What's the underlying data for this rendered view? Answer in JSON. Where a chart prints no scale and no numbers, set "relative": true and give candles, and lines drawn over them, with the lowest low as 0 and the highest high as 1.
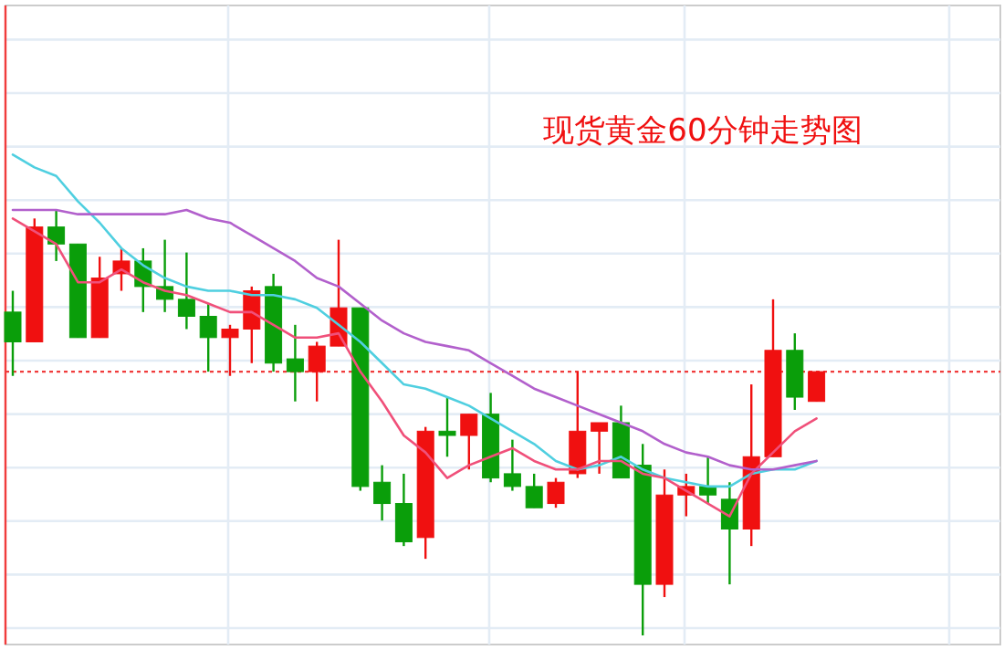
{
  "chart_data": {
    "type": "candlestick",
    "title": "现货黄金60分钟走势图",
    "relative": true,
    "grid": true,
    "categories": [
      null,
      null,
      null,
      null,
      null,
      null,
      null,
      null,
      null,
      null,
      null,
      null,
      null,
      null,
      null,
      null,
      null,
      null,
      null,
      null,
      null,
      null,
      null,
      null,
      null,
      null,
      null,
      null,
      null,
      null,
      null,
      null,
      null,
      null,
      null,
      null,
      null,
      null
    ],
    "ohlc": [
      [
        0.76,
        0.81,
        0.61,
        0.69
      ],
      [
        0.69,
        0.98,
        0.69,
        0.96
      ],
      [
        0.96,
        1,
        0.88,
        0.92
      ],
      [
        0.92,
        0.92,
        0.7,
        0.7
      ],
      [
        0.7,
        0.89,
        0.7,
        0.84
      ],
      [
        0.85,
        0.91,
        0.81,
        0.88
      ],
      [
        0.88,
        0.91,
        0.76,
        0.82
      ],
      [
        0.82,
        0.93,
        0.76,
        0.79
      ],
      [
        0.79,
        0.9,
        0.72,
        0.75
      ],
      [
        0.75,
        0.78,
        0.62,
        0.7
      ],
      [
        0.7,
        0.73,
        0.61,
        0.72
      ],
      [
        0.72,
        0.82,
        0.64,
        0.81
      ],
      [
        0.82,
        0.85,
        0.62,
        0.64
      ],
      [
        0.65,
        0.73,
        0.55,
        0.62
      ],
      [
        0.62,
        0.69,
        0.55,
        0.68
      ],
      [
        0.68,
        0.93,
        0.68,
        0.77
      ],
      [
        0.77,
        0.77,
        0.34,
        0.35
      ],
      [
        0.36,
        0.4,
        0.27,
        0.31
      ],
      [
        0.31,
        0.38,
        0.21,
        0.22
      ],
      [
        0.23,
        0.49,
        0.18,
        0.48
      ],
      [
        0.48,
        0.56,
        0.42,
        0.47
      ],
      [
        0.47,
        0.52,
        0.39,
        0.52
      ],
      [
        0.52,
        0.57,
        0.36,
        0.37
      ],
      [
        0.38,
        0.46,
        0.34,
        0.35
      ],
      [
        0.35,
        0.38,
        0.3,
        0.3
      ],
      [
        0.31,
        0.37,
        0.3,
        0.36
      ],
      [
        0.38,
        0.62,
        0.37,
        0.48
      ],
      [
        0.48,
        0.5,
        0.38,
        0.5
      ],
      [
        0.5,
        0.54,
        0.37,
        0.37
      ],
      [
        0.4,
        0.45,
        0,
        0.12
      ],
      [
        0.12,
        0.39,
        0.09,
        0.33
      ],
      [
        0.33,
        0.38,
        0.28,
        0.35
      ],
      [
        0.35,
        0.42,
        0.31,
        0.33
      ],
      [
        0.32,
        0.36,
        0.12,
        0.25
      ],
      [
        0.25,
        0.59,
        0.21,
        0.42
      ],
      [
        0.42,
        0.79,
        0.42,
        0.67
      ],
      [
        0.67,
        0.71,
        0.53,
        0.56
      ],
      [
        0.55,
        0.62,
        0.55,
        0.62
      ]
    ],
    "colors": [
      "#0a9e0a",
      "#f01010",
      "#0a9e0a",
      "#0a9e0a",
      "#f01010",
      "#f01010",
      "#0a9e0a",
      "#0a9e0a",
      "#0a9e0a",
      "#0a9e0a",
      "#f01010",
      "#f01010",
      "#0a9e0a",
      "#0a9e0a",
      "#f01010",
      "#f01010",
      "#0a9e0a",
      "#0a9e0a",
      "#0a9e0a",
      "#f01010",
      "#0a9e0a",
      "#f01010",
      "#0a9e0a",
      "#0a9e0a",
      "#0a9e0a",
      "#f01010",
      "#f01010",
      "#f01010",
      "#0a9e0a",
      "#0a9e0a",
      "#f01010",
      "#f01010",
      "#0a9e0a",
      "#0a9e0a",
      "#f01010",
      "#f01010",
      "#0a9e0a",
      "#f01010"
    ],
    "series": [
      {
        "type": "line",
        "color": "#4fcfe0",
        "values": [
          1.13,
          1.1,
          1.08,
          1.02,
          0.97,
          0.91,
          0.87,
          0.84,
          0.82,
          0.81,
          0.81,
          0.8,
          0.8,
          0.79,
          0.77,
          0.73,
          0.69,
          0.64,
          0.59,
          0.58,
          0.56,
          0.54,
          0.51,
          0.48,
          0.45,
          0.41,
          0.39,
          0.4,
          0.42,
          0.39,
          0.37,
          0.36,
          0.35,
          0.35,
          0.38,
          0.39,
          0.39,
          0.41
        ]
      },
      {
        "type": "line",
        "color": "#f0507a",
        "values": [
          0.98,
          0.95,
          0.92,
          0.83,
          0.83,
          0.86,
          0.83,
          0.81,
          0.8,
          0.78,
          0.76,
          0.76,
          0.73,
          0.7,
          0.7,
          0.71,
          0.62,
          0.55,
          0.47,
          0.43,
          0.37,
          0.4,
          0.42,
          0.44,
          0.41,
          0.39,
          0.39,
          0.41,
          0.41,
          0.38,
          0.37,
          0.34,
          0.31,
          0.28,
          0.38,
          0.43,
          0.48,
          0.51
        ]
      },
      {
        "type": "line",
        "color": "#b260cc",
        "values": [
          1.0,
          1.0,
          1.0,
          0.99,
          0.99,
          0.99,
          0.99,
          0.99,
          1.0,
          0.98,
          0.97,
          0.94,
          0.91,
          0.88,
          0.84,
          0.82,
          0.78,
          0.74,
          0.71,
          0.69,
          0.68,
          0.67,
          0.64,
          0.61,
          0.58,
          0.56,
          0.54,
          0.52,
          0.5,
          0.48,
          0.45,
          0.43,
          0.42,
          0.4,
          0.39,
          0.39,
          0.4,
          0.41
        ]
      }
    ],
    "ref_lines": [
      {
        "axis": "y",
        "value": 0.62,
        "color": "#f03c3c",
        "line_style": "dotted"
      }
    ]
  }
}
